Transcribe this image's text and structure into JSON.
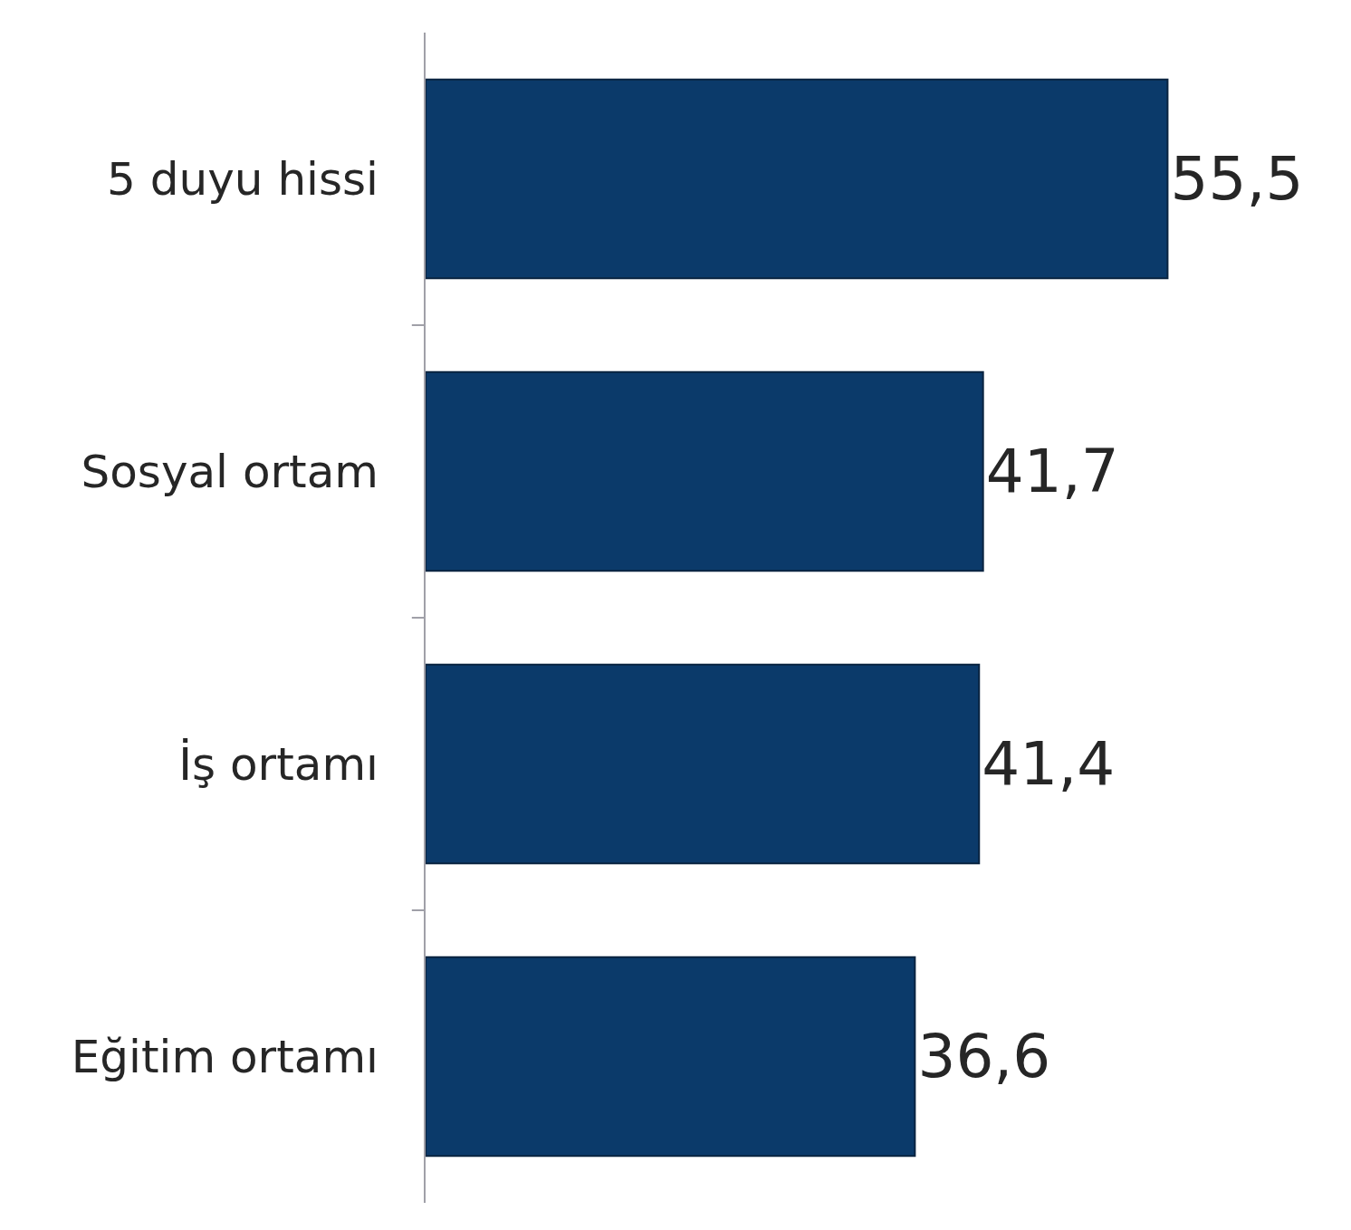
{
  "chart_data": {
    "type": "bar",
    "orientation": "horizontal",
    "categories": [
      "5 duyu hissi",
      "Sosyal ortam",
      "İş ortamı",
      "Eğitim ortamı"
    ],
    "values": [
      55.5,
      41.7,
      41.4,
      36.6
    ],
    "value_labels": [
      "55,5",
      "41,7",
      "41,4",
      "36,6"
    ],
    "color": "#0b3a6a",
    "legend": false,
    "tick_labels": "y"
  }
}
